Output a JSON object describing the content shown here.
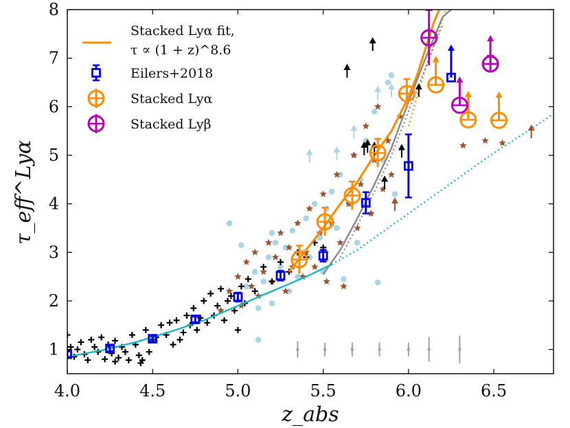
{
  "chart_data": {
    "type": "scatter",
    "xlabel": "z_abs",
    "ylabel": "τ_eff^Lyα",
    "xlim": [
      4.0,
      6.85
    ],
    "ylim": [
      0.5,
      8.0
    ],
    "x_ticks": [
      "4.0",
      "4.5",
      "5.0",
      "5.5",
      "6.0",
      "6.5"
    ],
    "y_ticks": [
      "1",
      "2",
      "3",
      "4",
      "5",
      "6",
      "7",
      "8"
    ],
    "grid": false,
    "legend_position": "top-left",
    "legend": [
      {
        "label_line1": "Stacked Lyα fit,",
        "label_line2": "τ ∝ (1 + z)^8.6",
        "color": "#ff8c00",
        "marker": "line"
      },
      {
        "label_line1": "Eilers+2018",
        "color": "#0000ee",
        "marker": "square-errorbar"
      },
      {
        "label_line1": "Stacked Lyα",
        "color": "#ff8c00",
        "marker": "circle-errorbar"
      },
      {
        "label_line1": "Stacked Lyβ",
        "color": "#bb00bb",
        "marker": "circle-errorbar"
      }
    ],
    "series": [
      {
        "name": "Eilers+2018",
        "color": "#0000ee",
        "x": [
          4.0,
          4.25,
          4.5,
          4.75,
          5.0,
          5.25,
          5.5,
          5.75,
          6.0
        ],
        "y": [
          0.9,
          1.02,
          1.22,
          1.62,
          2.08,
          2.52,
          2.93,
          4.02,
          4.78
        ],
        "yerr": [
          0.06,
          0.06,
          0.06,
          0.06,
          0.09,
          0.1,
          0.12,
          0.22,
          0.65
        ],
        "lower_limits_x": [
          6.25
        ],
        "lower_limits_y": [
          6.6
        ]
      },
      {
        "name": "Stacked Lyα",
        "color": "#ff8c00",
        "x": [
          5.36,
          5.51,
          5.67,
          5.82,
          5.99
        ],
        "y": [
          2.85,
          3.63,
          4.17,
          5.05,
          6.27
        ],
        "yerr": [
          0.12,
          0.12,
          0.12,
          0.12,
          0.13
        ],
        "lower_limits_x": [
          6.16,
          6.35,
          6.53
        ],
        "lower_limits_y": [
          6.45,
          5.73,
          5.72
        ]
      },
      {
        "name": "Stacked Lyβ",
        "color": "#bb00bb",
        "x": [
          6.12,
          6.48
        ],
        "y": [
          7.42,
          6.88
        ],
        "yerr": [
          0.4,
          0.0
        ],
        "lower_limits_x": [
          6.48,
          6.3
        ],
        "lower_limits_y": [
          6.88,
          6.03
        ]
      }
    ],
    "fit_curves": [
      {
        "name": "Stacked Lyα fit",
        "color": "#ff8c00",
        "style": "solid",
        "x": [
          5.3,
          5.4,
          5.5,
          5.6,
          5.7,
          5.8,
          5.9,
          6.0,
          6.05,
          6.1,
          6.15,
          6.18
        ],
        "y": [
          2.6,
          3.05,
          3.5,
          4.0,
          4.45,
          5.0,
          5.5,
          6.2,
          6.65,
          7.2,
          7.75,
          8.0
        ]
      },
      {
        "name": "orange dotted extension",
        "color": "#ff8c00",
        "style": "dotted",
        "x": [
          6.0,
          6.1,
          6.2,
          6.22
        ],
        "y": [
          5.6,
          6.8,
          7.8,
          8.0
        ]
      },
      {
        "name": "gray solid",
        "color": "#888888",
        "style": "solid",
        "x": [
          5.5,
          5.6,
          5.7,
          5.8,
          5.9,
          6.0,
          6.1,
          6.2,
          6.25
        ],
        "y": [
          2.55,
          3.05,
          3.7,
          4.4,
          5.15,
          6.1,
          7.0,
          7.85,
          8.0
        ]
      },
      {
        "name": "gray dotted",
        "color": "#888888",
        "style": "dotted",
        "x": [
          5.6,
          5.7,
          5.8,
          5.9,
          6.0,
          6.1,
          6.2
        ],
        "y": [
          2.9,
          3.55,
          4.25,
          5.0,
          5.9,
          6.8,
          7.7
        ]
      },
      {
        "name": "cyan solid",
        "color": "#17b8c0",
        "style": "solid",
        "x": [
          4.0,
          4.2,
          4.4,
          4.6,
          4.8,
          5.0,
          5.2,
          5.4,
          5.55
        ],
        "y": [
          0.85,
          0.98,
          1.15,
          1.36,
          1.6,
          1.9,
          2.2,
          2.5,
          2.75
        ]
      },
      {
        "name": "cyan dotted",
        "color": "#17b8c0",
        "style": "dotted",
        "x": [
          5.55,
          5.7,
          5.9,
          6.1,
          6.3,
          6.5,
          6.7,
          6.85
        ],
        "y": [
          2.75,
          3.05,
          3.55,
          4.05,
          4.55,
          5.05,
          5.5,
          5.85
        ]
      }
    ],
    "scatter_plus_black": [
      [
        4.0,
        1.3
      ],
      [
        4.02,
        1.05
      ],
      [
        4.04,
        0.85
      ],
      [
        4.06,
        1.0
      ],
      [
        4.08,
        1.15
      ],
      [
        4.1,
        0.9
      ],
      [
        4.12,
        0.78
      ],
      [
        4.14,
        1.2
      ],
      [
        4.16,
        1.05
      ],
      [
        4.18,
        0.95
      ],
      [
        4.2,
        1.25
      ],
      [
        4.22,
        0.8
      ],
      [
        4.24,
        1.1
      ],
      [
        4.26,
        0.92
      ],
      [
        4.28,
        1.18
      ],
      [
        4.3,
        0.83
      ],
      [
        4.32,
        1.05
      ],
      [
        4.34,
        0.95
      ],
      [
        4.36,
        0.78
      ],
      [
        4.38,
        1.3
      ],
      [
        4.4,
        1.1
      ],
      [
        4.42,
        0.88
      ],
      [
        4.44,
        0.78
      ],
      [
        4.46,
        1.4
      ],
      [
        4.48,
        0.95
      ],
      [
        4.5,
        1.2
      ],
      [
        4.52,
        1.25
      ],
      [
        4.55,
        1.5
      ],
      [
        4.58,
        1.3
      ],
      [
        4.6,
        1.55
      ],
      [
        4.62,
        1.1
      ],
      [
        4.64,
        1.6
      ],
      [
        4.66,
        1.2
      ],
      [
        4.68,
        1.35
      ],
      [
        4.7,
        1.7
      ],
      [
        4.72,
        1.5
      ],
      [
        4.74,
        1.85
      ],
      [
        4.76,
        1.4
      ],
      [
        4.78,
        1.65
      ],
      [
        4.8,
        2.0
      ],
      [
        4.82,
        1.55
      ],
      [
        4.84,
        2.15
      ],
      [
        4.86,
        1.7
      ],
      [
        4.88,
        1.9
      ],
      [
        4.9,
        2.25
      ],
      [
        4.92,
        1.6
      ],
      [
        4.94,
        2.0
      ],
      [
        4.96,
        2.1
      ],
      [
        4.98,
        1.8
      ],
      [
        5.0,
        1.4
      ],
      [
        5.02,
        2.3
      ],
      [
        5.04,
        1.95
      ],
      [
        5.06,
        2.45
      ],
      [
        5.1,
        2.2
      ],
      [
        5.15,
        2.7
      ],
      [
        5.2,
        2.4
      ],
      [
        5.25,
        2.8
      ],
      [
        5.3,
        2.6
      ],
      [
        5.35,
        3.0
      ],
      [
        5.4,
        2.9
      ],
      [
        5.45,
        3.2
      ],
      [
        5.5,
        3.1
      ],
      [
        4.28,
        0.75
      ],
      [
        4.43,
        0.72
      ]
    ],
    "scatter_circle_lightblue": [
      [
        5.0,
        2.0
      ],
      [
        5.05,
        2.3
      ],
      [
        5.1,
        2.6
      ],
      [
        5.12,
        1.85
      ],
      [
        5.15,
        2.4
      ],
      [
        5.18,
        2.9
      ],
      [
        5.2,
        1.95
      ],
      [
        5.22,
        3.2
      ],
      [
        5.25,
        2.7
      ],
      [
        5.28,
        3.1
      ],
      [
        5.3,
        2.2
      ],
      [
        5.32,
        3.45
      ],
      [
        5.35,
        2.5
      ],
      [
        5.38,
        3.0
      ],
      [
        5.4,
        3.7
      ],
      [
        5.42,
        2.9
      ],
      [
        5.45,
        4.0
      ],
      [
        5.48,
        3.3
      ],
      [
        5.5,
        2.6
      ],
      [
        5.52,
        3.9
      ],
      [
        5.55,
        4.25
      ],
      [
        5.58,
        3.5
      ],
      [
        5.6,
        4.6
      ],
      [
        5.62,
        2.45
      ],
      [
        5.65,
        4.0
      ],
      [
        5.68,
        5.0
      ],
      [
        5.7,
        3.2
      ],
      [
        5.72,
        4.5
      ],
      [
        5.75,
        5.3
      ],
      [
        5.78,
        3.8
      ],
      [
        5.8,
        5.9
      ],
      [
        5.82,
        2.38
      ],
      [
        5.85,
        4.9
      ],
      [
        5.88,
        6.5
      ],
      [
        5.9,
        6.65
      ],
      [
        5.92,
        4.2
      ],
      [
        4.95,
        3.6
      ],
      [
        5.02,
        3.15
      ],
      [
        5.12,
        1.2
      ],
      [
        5.2,
        3.4
      ]
    ],
    "scatter_star_brown": [
      [
        4.9,
        1.8
      ],
      [
        4.95,
        2.2
      ],
      [
        5.0,
        2.5
      ],
      [
        5.02,
        1.9
      ],
      [
        5.05,
        2.8
      ],
      [
        5.08,
        2.3
      ],
      [
        5.1,
        3.0
      ],
      [
        5.12,
        2.1
      ],
      [
        5.15,
        2.6
      ],
      [
        5.18,
        3.2
      ],
      [
        5.2,
        2.4
      ],
      [
        5.22,
        2.9
      ],
      [
        5.25,
        3.4
      ],
      [
        5.28,
        2.2
      ],
      [
        5.3,
        3.1
      ],
      [
        5.32,
        2.7
      ],
      [
        5.35,
        3.6
      ],
      [
        5.38,
        2.5
      ],
      [
        5.4,
        3.0
      ],
      [
        5.42,
        3.9
      ],
      [
        5.45,
        2.7
      ],
      [
        5.48,
        3.4
      ],
      [
        5.5,
        4.2
      ],
      [
        5.52,
        2.4
      ],
      [
        5.55,
        3.6
      ],
      [
        5.58,
        4.6
      ],
      [
        5.6,
        3.2
      ],
      [
        5.62,
        2.3
      ],
      [
        5.65,
        4.0
      ],
      [
        5.68,
        5.0
      ],
      [
        5.7,
        3.5
      ],
      [
        5.72,
        4.4
      ],
      [
        5.75,
        5.6
      ],
      [
        5.78,
        3.8
      ],
      [
        5.8,
        4.9
      ],
      [
        5.82,
        6.0
      ],
      [
        5.85,
        4.3
      ],
      [
        5.88,
        5.3
      ],
      [
        5.9,
        4.6
      ],
      [
        5.95,
        5.8
      ],
      [
        6.32,
        5.2
      ],
      [
        6.45,
        5.3
      ],
      [
        6.55,
        5.25
      ]
    ]
  }
}
